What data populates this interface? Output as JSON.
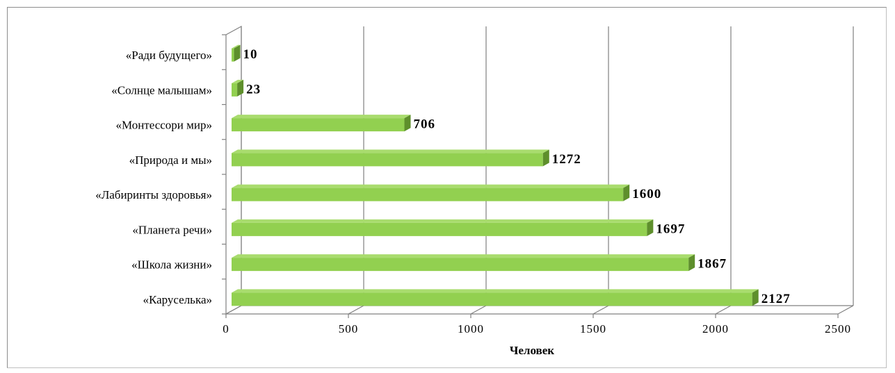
{
  "chart_data": {
    "type": "bar",
    "orientation": "horizontal",
    "categories": [
      "«Каруселька»",
      "«Школа жизни»",
      "«Планета речи»",
      "«Лабиринты здоровья»",
      "«Природа и мы»",
      "«Монтессори мир»",
      "«Солнце малышам»",
      "«Ради будущего»"
    ],
    "values": [
      2127,
      1867,
      1697,
      1600,
      1272,
      706,
      23,
      10
    ],
    "value_labels": [
      "2127",
      "1867",
      "1697",
      "1600",
      "1272",
      "706",
      "23",
      "10"
    ],
    "xlabel": "Человек",
    "xlim": [
      0,
      2500
    ],
    "xticks": [
      "0",
      "500",
      "1000",
      "1500",
      "2000",
      "2500"
    ],
    "grid": true,
    "bar_color": "#92d050",
    "bar_side_color": "#5e8f2c",
    "bar_top_color": "#a9dc6e"
  }
}
